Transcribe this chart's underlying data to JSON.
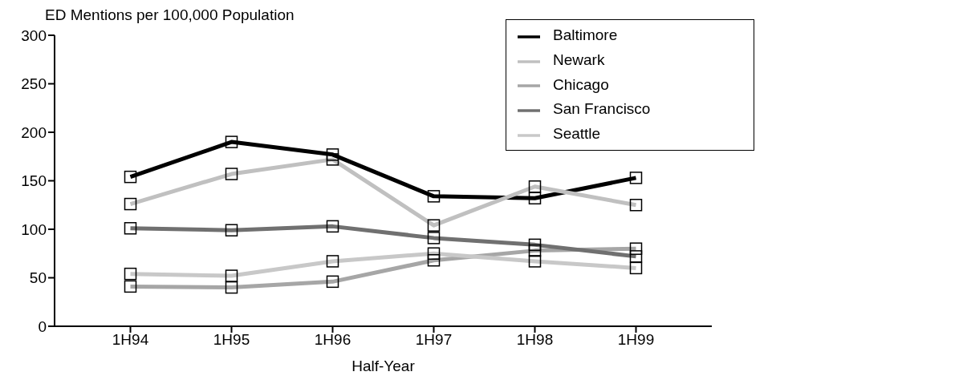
{
  "chart_data": {
    "type": "line",
    "ylabel": "ED Mentions per 100,000 Population",
    "xlabel": "Half-Year",
    "categories": [
      "1H94",
      "1H95",
      "1H96",
      "1H97",
      "1H98",
      "1H99"
    ],
    "series": [
      {
        "name": "Baltimore",
        "color": "#000000",
        "values": [
          154,
          190,
          177,
          134,
          132,
          153
        ]
      },
      {
        "name": "Newark",
        "color": "#c0c0c0",
        "values": [
          126,
          157,
          172,
          104,
          144,
          125
        ]
      },
      {
        "name": "Chicago",
        "color": "#a6a6a6",
        "values": [
          41,
          40,
          46,
          68,
          78,
          80
        ]
      },
      {
        "name": "San Francisco",
        "color": "#707070",
        "values": [
          101,
          99,
          103,
          91,
          84,
          72
        ]
      },
      {
        "name": "Seattle",
        "color": "#c8c8c8",
        "values": [
          54,
          52,
          67,
          75,
          67,
          60
        ]
      }
    ],
    "ylim": [
      0,
      300
    ],
    "yticks": [
      0,
      50,
      100,
      150,
      200,
      250,
      300
    ],
    "grid": false,
    "legend": "top right",
    "marker": "square",
    "line_style": "solid"
  }
}
